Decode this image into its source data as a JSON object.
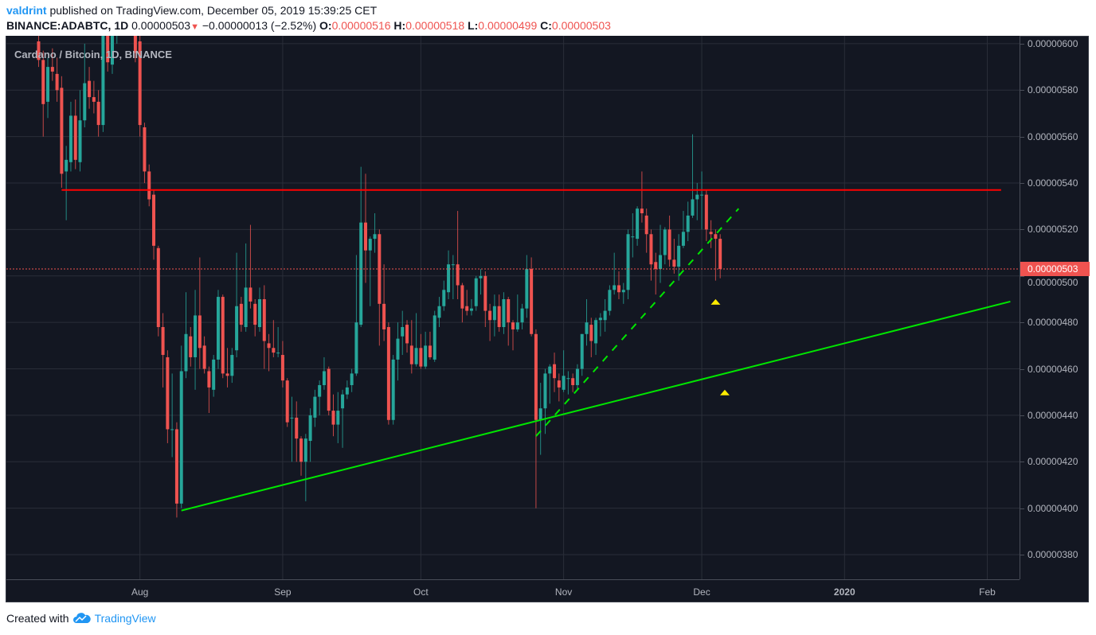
{
  "header": {
    "author": "valdrint",
    "published": "published on TradingView.com, December 05, 2019 15:39:25 CET",
    "symbol": "BINANCE:ADABTC, 1D",
    "last": "0.00000503",
    "change": "−0.00000013 (−2.52%)",
    "o_label": "O:",
    "o": "0.00000516",
    "h_label": "H:",
    "h": "0.00000518",
    "l_label": "L:",
    "l": "0.00000499",
    "c_label": "C:",
    "c": "0.00000503",
    "down_icon": "triangle-down-icon"
  },
  "chart": {
    "legend": "Cardano / Bitcoin, 1D, BINANCE",
    "last_price_badge": "0.00000503",
    "colors": {
      "background": "#131722",
      "grid": "#2a2e39",
      "up": "#26a69a",
      "down": "#ef5350",
      "resistance": "#ff0000",
      "trend": "#00e600",
      "marker": "#ffeb00"
    }
  },
  "footer": {
    "created_with": "Created with",
    "brand": "TradingView",
    "logo_icon": "tradingview-cloud-icon"
  },
  "chart_data": {
    "type": "candlestick",
    "title": "Cardano / Bitcoin, 1D, BINANCE",
    "xlim": [
      "2019-07-03",
      "2020-02-08"
    ],
    "ylim": [
      3.694e-06,
      6.034e-06
    ],
    "grid": true,
    "y_ticks": [
      "0.00000600",
      "0.00000580",
      "0.00000560",
      "0.00000540",
      "0.00000520",
      "0.00000500",
      "0.00000480",
      "0.00000460",
      "0.00000440",
      "0.00000420",
      "0.00000400",
      "0.00000380"
    ],
    "x_ticks": [
      {
        "label": "Aug",
        "date": "2019-08-01"
      },
      {
        "label": "Sep",
        "date": "2019-09-01"
      },
      {
        "label": "Oct",
        "date": "2019-10-01"
      },
      {
        "label": "Nov",
        "date": "2019-11-01"
      },
      {
        "label": "Dec",
        "date": "2019-12-01"
      },
      {
        "label": "2020",
        "date": "2020-01-01"
      },
      {
        "label": "Feb",
        "date": "2020-02-01"
      }
    ],
    "last_price": 5.03e-06,
    "columns": [
      "date",
      "open",
      "high",
      "low",
      "close"
    ],
    "candles": [
      [
        "2019-07-10",
        6.01e-06,
        6.06e-06,
        5.9e-06,
        5.93e-06
      ],
      [
        "2019-07-11",
        5.93e-06,
        5.97e-06,
        5.6e-06,
        5.74e-06
      ],
      [
        "2019-07-12",
        5.75e-06,
        5.94e-06,
        5.68e-06,
        5.9e-06
      ],
      [
        "2019-07-13",
        5.9e-06,
        5.98e-06,
        5.84e-06,
        5.88e-06
      ],
      [
        "2019-07-14",
        5.87e-06,
        5.94e-06,
        5.75e-06,
        5.8e-06
      ],
      [
        "2019-07-15",
        5.81e-06,
        5.86e-06,
        5.38e-06,
        5.44e-06
      ],
      [
        "2019-07-16",
        5.45e-06,
        5.56e-06,
        5.24e-06,
        5.5e-06
      ],
      [
        "2019-07-17",
        5.49e-06,
        5.75e-06,
        5.45e-06,
        5.69e-06
      ],
      [
        "2019-07-18",
        5.69e-06,
        5.76e-06,
        5.46e-06,
        5.5e-06
      ],
      [
        "2019-07-19",
        5.49e-06,
        5.8e-06,
        5.45e-06,
        5.67e-06
      ],
      [
        "2019-07-20",
        5.67e-06,
        6e-06,
        5.64e-06,
        5.83e-06
      ],
      [
        "2019-07-21",
        5.84e-06,
        5.9e-06,
        5.72e-06,
        5.77e-06
      ],
      [
        "2019-07-22",
        5.77e-06,
        5.84e-06,
        5.7e-06,
        5.75e-06
      ],
      [
        "2019-07-23",
        5.75e-06,
        5.8e-06,
        5.6e-06,
        5.65e-06
      ],
      [
        "2019-07-24",
        5.65e-06,
        6.12e-06,
        5.62e-06,
        6.08e-06
      ],
      [
        "2019-07-25",
        6.05e-06,
        6.1e-06,
        5.88e-06,
        5.92e-06
      ],
      [
        "2019-07-26",
        5.91e-06,
        6.1e-06,
        5.87e-06,
        6.05e-06
      ],
      [
        "2019-07-27",
        6.05e-06,
        6.16e-06,
        6e-06,
        6.12e-06
      ],
      [
        "2019-07-28",
        6.12e-06,
        6.25e-06,
        6.08e-06,
        6.2e-06
      ],
      [
        "2019-07-29",
        6.2e-06,
        6.24e-06,
        6.1e-06,
        6.15e-06
      ],
      [
        "2019-07-30",
        6.15e-06,
        6.2e-06,
        6.05e-06,
        6.1e-06
      ],
      [
        "2019-07-31",
        6.1e-06,
        6.12e-06,
        5.92e-06,
        5.96e-06
      ],
      [
        "2019-08-01",
        6.01e-06,
        6.04e-06,
        5.6e-06,
        5.65e-06
      ],
      [
        "2019-08-02",
        5.64e-06,
        5.66e-06,
        5.4e-06,
        5.45e-06
      ],
      [
        "2019-08-03",
        5.45e-06,
        5.48e-06,
        5.3e-06,
        5.33e-06
      ],
      [
        "2019-08-04",
        5.35e-06,
        5.37e-06,
        5.07e-06,
        5.13e-06
      ],
      [
        "2019-08-05",
        5.12e-06,
        5.13e-06,
        4.74e-06,
        4.78e-06
      ],
      [
        "2019-08-06",
        4.78e-06,
        4.84e-06,
        4.52e-06,
        4.66e-06
      ],
      [
        "2019-08-07",
        4.65e-06,
        4.68e-06,
        4.28e-06,
        4.34e-06
      ],
      [
        "2019-08-08",
        4.34e-06,
        4.58e-06,
        4.22e-06,
        4.34e-06
      ],
      [
        "2019-08-09",
        4.34e-06,
        4.37e-06,
        3.96e-06,
        4.02e-06
      ],
      [
        "2019-08-10",
        4.02e-06,
        4.7e-06,
        4e-06,
        4.59e-06
      ],
      [
        "2019-08-11",
        4.59e-06,
        4.93e-06,
        4.56e-06,
        4.75e-06
      ],
      [
        "2019-08-12",
        4.74e-06,
        4.78e-06,
        4.61e-06,
        4.65e-06
      ],
      [
        "2019-08-13",
        4.65e-06,
        4.94e-06,
        4.51e-06,
        4.83e-06
      ],
      [
        "2019-08-14",
        4.83e-06,
        5.08e-06,
        4.6e-06,
        4.69e-06
      ],
      [
        "2019-08-15",
        4.7e-06,
        4.74e-06,
        4.58e-06,
        4.6e-06
      ],
      [
        "2019-08-16",
        4.59e-06,
        4.61e-06,
        4.41e-06,
        4.52e-06
      ],
      [
        "2019-08-17",
        4.51e-06,
        4.66e-06,
        4.48e-06,
        4.64e-06
      ],
      [
        "2019-08-18",
        4.64e-06,
        4.94e-06,
        4.6e-06,
        4.91e-06
      ],
      [
        "2019-08-19",
        4.91e-06,
        4.92e-06,
        4.56e-06,
        4.58e-06
      ],
      [
        "2019-08-20",
        4.58e-06,
        4.69e-06,
        4.52e-06,
        4.57e-06
      ],
      [
        "2019-08-21",
        4.57e-06,
        4.69e-06,
        4.54e-06,
        4.66e-06
      ],
      [
        "2019-08-22",
        4.68e-06,
        5.1e-06,
        4.65e-06,
        4.87e-06
      ],
      [
        "2019-08-23",
        4.88e-06,
        4.91e-06,
        4.76e-06,
        4.79e-06
      ],
      [
        "2019-08-24",
        4.78e-06,
        5.14e-06,
        4.76e-06,
        4.95e-06
      ],
      [
        "2019-08-25",
        4.95e-06,
        5.22e-06,
        4.86e-06,
        4.89e-06
      ],
      [
        "2019-08-26",
        4.88e-06,
        4.9e-06,
        4.74e-06,
        4.79e-06
      ],
      [
        "2019-08-27",
        4.78e-06,
        4.95e-06,
        4.76e-06,
        4.9e-06
      ],
      [
        "2019-08-28",
        4.9e-06,
        4.96e-06,
        4.6e-06,
        4.72e-06
      ],
      [
        "2019-08-29",
        4.71e-06,
        4.75e-06,
        4.59e-06,
        4.69e-06
      ],
      [
        "2019-08-30",
        4.69e-06,
        4.81e-06,
        4.65e-06,
        4.67e-06
      ],
      [
        "2019-08-31",
        4.67e-06,
        4.78e-06,
        4.65e-06,
        4.67e-06
      ],
      [
        "2019-09-01",
        4.66e-06,
        4.72e-06,
        4.52e-06,
        4.55e-06
      ],
      [
        "2019-09-02",
        4.55e-06,
        4.56e-06,
        4.35e-06,
        4.37e-06
      ],
      [
        "2019-09-03",
        4.39e-06,
        4.48e-06,
        4.2e-06,
        4.39e-06
      ],
      [
        "2019-09-04",
        4.39e-06,
        4.46e-06,
        4.2e-06,
        4.3e-06
      ],
      [
        "2019-09-05",
        4.3e-06,
        4.31e-06,
        4.14e-06,
        4.2e-06
      ],
      [
        "2019-09-06",
        4.2e-06,
        4.32e-06,
        4.03e-06,
        4.3e-06
      ],
      [
        "2019-09-07",
        4.29e-06,
        4.43e-06,
        4.2e-06,
        4.4e-06
      ],
      [
        "2019-09-08",
        4.39e-06,
        4.51e-06,
        4.35e-06,
        4.48e-06
      ],
      [
        "2019-09-09",
        4.48e-06,
        4.55e-06,
        4.4e-06,
        4.53e-06
      ],
      [
        "2019-09-10",
        4.53e-06,
        4.65e-06,
        4.51e-06,
        4.59e-06
      ],
      [
        "2019-09-11",
        4.6e-06,
        4.61e-06,
        4.4e-06,
        4.42e-06
      ],
      [
        "2019-09-12",
        4.42e-06,
        4.49e-06,
        4.31e-06,
        4.36e-06
      ],
      [
        "2019-09-13",
        4.36e-06,
        4.5e-06,
        4.28e-06,
        4.42e-06
      ],
      [
        "2019-09-14",
        4.43e-06,
        4.51e-06,
        4.26e-06,
        4.49e-06
      ],
      [
        "2019-09-15",
        4.49e-06,
        4.55e-06,
        4.47e-06,
        4.52e-06
      ],
      [
        "2019-09-16",
        4.53e-06,
        4.6e-06,
        4.5e-06,
        4.58e-06
      ],
      [
        "2019-09-17",
        4.58e-06,
        5.09e-06,
        4.57e-06,
        4.8e-06
      ],
      [
        "2019-09-18",
        4.79e-06,
        5.47e-06,
        4.78e-06,
        5.23e-06
      ],
      [
        "2019-09-19",
        5.23e-06,
        5.44e-06,
        4.97e-06,
        5.11e-06
      ],
      [
        "2019-09-20",
        5.11e-06,
        5.17e-06,
        4.87e-06,
        5.16e-06
      ],
      [
        "2019-09-21",
        5.16e-06,
        5.27e-06,
        5.1e-06,
        5.18e-06
      ],
      [
        "2019-09-22",
        5.18e-06,
        5.2e-06,
        4.7e-06,
        4.88e-06
      ],
      [
        "2019-09-23",
        4.88e-06,
        5.05e-06,
        4.72e-06,
        4.77e-06
      ],
      [
        "2019-09-24",
        4.78e-06,
        4.8e-06,
        4.36e-06,
        4.38e-06
      ],
      [
        "2019-09-25",
        4.38e-06,
        4.66e-06,
        4.36e-06,
        4.64e-06
      ],
      [
        "2019-09-26",
        4.64e-06,
        4.8e-06,
        4.55e-06,
        4.73e-06
      ],
      [
        "2019-09-27",
        4.74e-06,
        4.85e-06,
        4.66e-06,
        4.78e-06
      ],
      [
        "2019-09-28",
        4.79e-06,
        4.81e-06,
        4.67e-06,
        4.71e-06
      ],
      [
        "2019-09-29",
        4.7e-06,
        4.81e-06,
        4.58e-06,
        4.62e-06
      ],
      [
        "2019-09-30",
        4.62e-06,
        4.84e-06,
        4.61e-06,
        4.69e-06
      ],
      [
        "2019-10-01",
        4.69e-06,
        4.75e-06,
        4.6e-06,
        4.61e-06
      ],
      [
        "2019-10-02",
        4.61e-06,
        4.76e-06,
        4.6e-06,
        4.7e-06
      ],
      [
        "2019-10-03",
        4.7e-06,
        4.76e-06,
        4.64e-06,
        4.65e-06
      ],
      [
        "2019-10-04",
        4.64e-06,
        4.85e-06,
        4.63e-06,
        4.83e-06
      ],
      [
        "2019-10-05",
        4.82e-06,
        4.91e-06,
        4.78e-06,
        4.87e-06
      ],
      [
        "2019-10-06",
        4.87e-06,
        4.98e-06,
        4.85e-06,
        4.94e-06
      ],
      [
        "2019-10-07",
        4.93e-06,
        5.11e-06,
        4.9e-06,
        5.05e-06
      ],
      [
        "2019-10-08",
        5.05e-06,
        5.09e-06,
        4.9e-06,
        5.05e-06
      ],
      [
        "2019-10-09",
        5.05e-06,
        5.28e-06,
        4.9e-06,
        4.96e-06
      ],
      [
        "2019-10-10",
        4.96e-06,
        4.97e-06,
        4.8e-06,
        4.86e-06
      ],
      [
        "2019-10-11",
        4.87e-06,
        4.94e-06,
        4.83e-06,
        4.85e-06
      ],
      [
        "2019-10-12",
        4.85e-06,
        4.9e-06,
        4.83e-06,
        4.86e-06
      ],
      [
        "2019-10-13",
        4.87e-06,
        5e-06,
        4.85e-06,
        4.99e-06
      ],
      [
        "2019-10-14",
        4.99e-06,
        5.03e-06,
        4.92e-06,
        5e-06
      ],
      [
        "2019-10-15",
        5e-06,
        5.02e-06,
        4.78e-06,
        4.85e-06
      ],
      [
        "2019-10-16",
        4.85e-06,
        4.88e-06,
        4.72e-06,
        4.81e-06
      ],
      [
        "2019-10-17",
        4.81e-06,
        4.92e-06,
        4.74e-06,
        4.87e-06
      ],
      [
        "2019-10-18",
        4.87e-06,
        4.92e-06,
        4.76e-06,
        4.78e-06
      ],
      [
        "2019-10-19",
        4.78e-06,
        4.93e-06,
        4.75e-06,
        4.9e-06
      ],
      [
        "2019-10-20",
        4.9e-06,
        4.91e-06,
        4.7e-06,
        4.8e-06
      ],
      [
        "2019-10-21",
        4.8e-06,
        4.81e-06,
        4.68e-06,
        4.77e-06
      ],
      [
        "2019-10-22",
        4.77e-06,
        4.92e-06,
        4.76e-06,
        4.8e-06
      ],
      [
        "2019-10-23",
        4.8e-06,
        4.88e-06,
        4.77e-06,
        4.86e-06
      ],
      [
        "2019-10-24",
        4.86e-06,
        5.09e-06,
        4.82e-06,
        5.03e-06
      ],
      [
        "2019-10-25",
        5.03e-06,
        5.08e-06,
        4.74e-06,
        4.75e-06
      ],
      [
        "2019-10-26",
        4.75e-06,
        4.77e-06,
        4e-06,
        4.38e-06
      ],
      [
        "2019-10-27",
        4.38e-06,
        4.54e-06,
        4.23e-06,
        4.43e-06
      ],
      [
        "2019-10-28",
        4.43e-06,
        4.6e-06,
        4.32e-06,
        4.58e-06
      ],
      [
        "2019-10-29",
        4.58e-06,
        4.62e-06,
        4.45e-06,
        4.61e-06
      ],
      [
        "2019-10-30",
        4.62e-06,
        4.67e-06,
        4.5e-06,
        4.56e-06
      ],
      [
        "2019-10-31",
        4.55e-06,
        4.58e-06,
        4.46e-06,
        4.52e-06
      ],
      [
        "2019-11-01",
        4.51e-06,
        4.68e-06,
        4.5e-06,
        4.57e-06
      ],
      [
        "2019-11-02",
        4.56e-06,
        4.59e-06,
        4.49e-06,
        4.56e-06
      ],
      [
        "2019-11-03",
        4.56e-06,
        4.58e-06,
        4.5e-06,
        4.53e-06
      ],
      [
        "2019-11-04",
        4.53e-06,
        4.62e-06,
        4.51e-06,
        4.6e-06
      ],
      [
        "2019-11-05",
        4.6e-06,
        4.75e-06,
        4.57e-06,
        4.75e-06
      ],
      [
        "2019-11-06",
        4.75e-06,
        4.9e-06,
        4.7e-06,
        4.8e-06
      ],
      [
        "2019-11-07",
        4.79e-06,
        4.82e-06,
        4.65e-06,
        4.72e-06
      ],
      [
        "2019-11-08",
        4.71e-06,
        4.82e-06,
        4.66e-06,
        4.81e-06
      ],
      [
        "2019-11-09",
        4.81e-06,
        4.84e-06,
        4.74e-06,
        4.82e-06
      ],
      [
        "2019-11-10",
        4.81e-06,
        4.9e-06,
        4.76e-06,
        4.85e-06
      ],
      [
        "2019-11-11",
        4.85e-06,
        4.96e-06,
        4.83e-06,
        4.94e-06
      ],
      [
        "2019-11-12",
        4.94e-06,
        5.1e-06,
        4.92e-06,
        4.96e-06
      ],
      [
        "2019-11-13",
        4.96e-06,
        5.02e-06,
        4.9e-06,
        4.93e-06
      ],
      [
        "2019-11-14",
        4.93e-06,
        4.97e-06,
        4.88e-06,
        4.94e-06
      ],
      [
        "2019-11-15",
        4.94e-06,
        5.2e-06,
        4.9e-06,
        5.18e-06
      ],
      [
        "2019-11-16",
        5.17e-06,
        5.27e-06,
        5.08e-06,
        5.17e-06
      ],
      [
        "2019-11-17",
        5.16e-06,
        5.3e-06,
        5.13e-06,
        5.29e-06
      ],
      [
        "2019-11-18",
        5.29e-06,
        5.45e-06,
        5.23e-06,
        5.27e-06
      ],
      [
        "2019-11-19",
        5.26e-06,
        5.29e-06,
        5.1e-06,
        5.18e-06
      ],
      [
        "2019-11-20",
        5.18e-06,
        5.2e-06,
        4.98e-06,
        5.05e-06
      ],
      [
        "2019-11-21",
        5.06e-06,
        5.1e-06,
        4.92e-06,
        5.03e-06
      ],
      [
        "2019-11-22",
        5.03e-06,
        5.22e-06,
        4.97e-06,
        5.09e-06
      ],
      [
        "2019-11-23",
        5.09e-06,
        5.21e-06,
        5.05e-06,
        5.2e-06
      ],
      [
        "2019-11-24",
        5.2e-06,
        5.26e-06,
        5.04e-06,
        5.07e-06
      ],
      [
        "2019-11-25",
        5.07e-06,
        5.16e-06,
        5.01e-06,
        5.04e-06
      ],
      [
        "2019-11-26",
        5.04e-06,
        5.18e-06,
        4.98e-06,
        5.13e-06
      ],
      [
        "2019-11-27",
        5.13e-06,
        5.28e-06,
        5.12e-06,
        5.19e-06
      ],
      [
        "2019-11-28",
        5.19e-06,
        5.32e-06,
        5.15e-06,
        5.26e-06
      ],
      [
        "2019-11-29",
        5.26e-06,
        5.61e-06,
        5.25e-06,
        5.33e-06
      ],
      [
        "2019-11-30",
        5.33e-06,
        5.4e-06,
        5.24e-06,
        5.35e-06
      ],
      [
        "2019-12-01",
        5.35e-06,
        5.45e-06,
        5.2e-06,
        5.35e-06
      ],
      [
        "2019-12-02",
        5.35e-06,
        5.37e-06,
        5.15e-06,
        5.2e-06
      ],
      [
        "2019-12-03",
        5.19e-06,
        5.24e-06,
        5.12e-06,
        5.18e-06
      ],
      [
        "2019-12-04",
        5.18e-06,
        5.2e-06,
        4.98e-06,
        5.16e-06
      ],
      [
        "2019-12-05",
        5.16e-06,
        5.18e-06,
        4.99e-06,
        5.03e-06
      ]
    ],
    "drawings": [
      {
        "kind": "resistance-line",
        "style": "solid",
        "color": "#ff0000",
        "from": [
          "2019-07-15",
          5.37e-06
        ],
        "to": [
          "2020-02-04",
          5.37e-06
        ]
      },
      {
        "kind": "support-trendline",
        "style": "solid",
        "color": "#00e600",
        "from": [
          "2019-08-10",
          3.99e-06
        ],
        "to": [
          "2020-02-06",
          4.89e-06
        ]
      },
      {
        "kind": "short-term-trendline",
        "style": "dashed",
        "color": "#00e600",
        "from": [
          "2019-10-26",
          4.31e-06
        ],
        "to": [
          "2019-12-09",
          5.29e-06
        ]
      }
    ],
    "markers": [
      {
        "shape": "triangle-up",
        "color": "#ffeb00",
        "date": "2019-12-04",
        "price": 4.89e-06
      },
      {
        "shape": "triangle-up",
        "color": "#ffeb00",
        "date": "2019-12-06",
        "price": 4.5e-06
      }
    ]
  }
}
